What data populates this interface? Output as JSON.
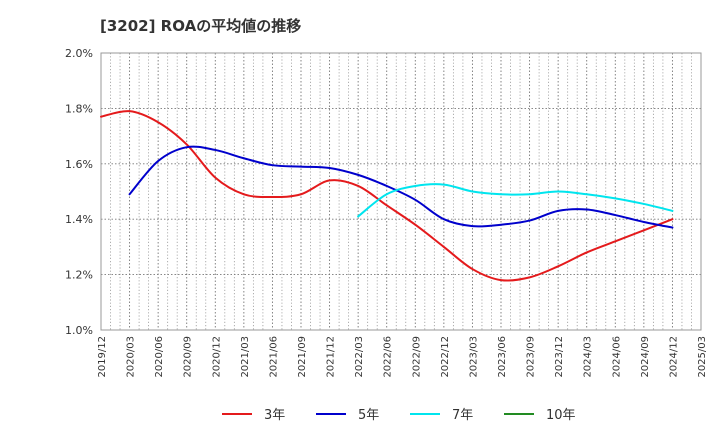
{
  "chart_data": {
    "type": "line",
    "title": "[3202]  ROAの平均値の推移",
    "xlabel": "",
    "ylabel": "",
    "ylim": [
      1.0,
      2.0
    ],
    "y_ticks": [
      "1.0%",
      "1.2%",
      "1.4%",
      "1.6%",
      "1.8%",
      "2.0%"
    ],
    "x_ticks": [
      "2019/12",
      "2020/03",
      "2020/06",
      "2020/09",
      "2020/12",
      "2021/03",
      "2021/06",
      "2021/09",
      "2021/12",
      "2022/03",
      "2022/06",
      "2022/09",
      "2022/12",
      "2023/03",
      "2023/06",
      "2023/09",
      "2023/12",
      "2024/03",
      "2024/06",
      "2024/09",
      "2024/12",
      "2025/03"
    ],
    "grid": true,
    "legend_position": "bottom",
    "series": [
      {
        "name": "3年",
        "color": "#e41a1c",
        "x": [
          "2019/12",
          "2020/03",
          "2020/06",
          "2020/09",
          "2020/12",
          "2021/03",
          "2021/06",
          "2021/09",
          "2021/12",
          "2022/03",
          "2022/06",
          "2022/09",
          "2022/12",
          "2023/03",
          "2023/06",
          "2023/09",
          "2023/12",
          "2024/03",
          "2024/06",
          "2024/09",
          "2024/12"
        ],
        "values": [
          1.77,
          1.79,
          1.75,
          1.67,
          1.55,
          1.49,
          1.48,
          1.49,
          1.54,
          1.52,
          1.45,
          1.38,
          1.3,
          1.22,
          1.18,
          1.19,
          1.23,
          1.28,
          1.32,
          1.36,
          1.4
        ]
      },
      {
        "name": "5年",
        "color": "#0000cc",
        "x": [
          "2020/03",
          "2020/06",
          "2020/09",
          "2020/12",
          "2021/03",
          "2021/06",
          "2021/09",
          "2021/12",
          "2022/03",
          "2022/06",
          "2022/09",
          "2022/12",
          "2023/03",
          "2023/06",
          "2023/09",
          "2023/12",
          "2024/03",
          "2024/06",
          "2024/09",
          "2024/12"
        ],
        "values": [
          1.49,
          1.61,
          1.66,
          1.65,
          1.62,
          1.595,
          1.59,
          1.585,
          1.56,
          1.52,
          1.47,
          1.4,
          1.375,
          1.38,
          1.395,
          1.43,
          1.435,
          1.415,
          1.39,
          1.37
        ]
      },
      {
        "name": "7年",
        "color": "#00e5ee",
        "x": [
          "2022/03",
          "2022/06",
          "2022/09",
          "2022/12",
          "2023/03",
          "2023/06",
          "2023/09",
          "2023/12",
          "2024/03",
          "2024/06",
          "2024/09",
          "2024/12"
        ],
        "values": [
          1.41,
          1.49,
          1.52,
          1.525,
          1.5,
          1.49,
          1.49,
          1.5,
          1.49,
          1.475,
          1.455,
          1.43
        ]
      },
      {
        "name": "10年",
        "color": "#228b22",
        "x": [],
        "values": []
      }
    ]
  }
}
